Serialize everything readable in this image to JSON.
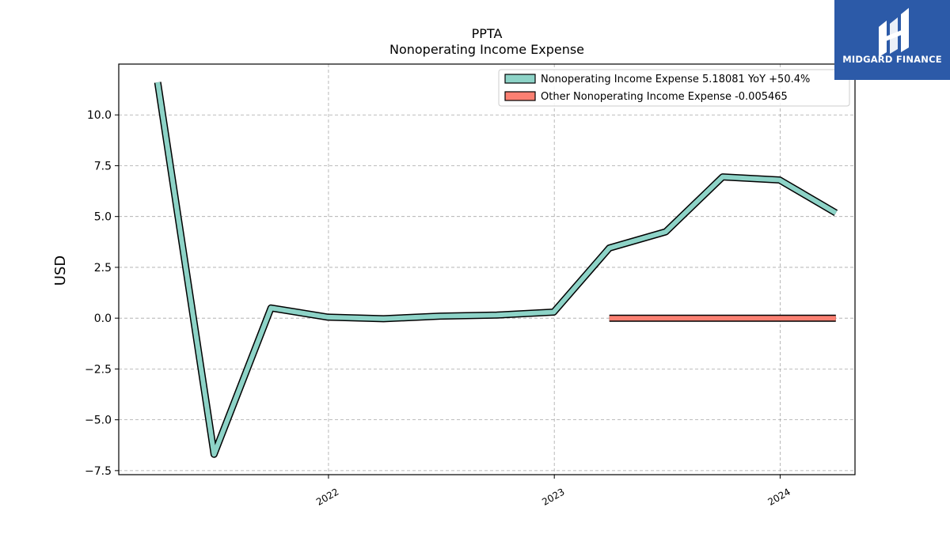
{
  "chart_data": {
    "type": "line",
    "title": "PPTA",
    "subtitle": "Nonoperating Income Expense",
    "xlabel": "",
    "ylabel": "USD",
    "ylim": [
      -7.7,
      12.5
    ],
    "xlim": [
      "2021-01-27",
      "2024-05-01"
    ],
    "y_ticks": [
      10.0,
      7.5,
      5.0,
      2.5,
      0.0,
      -2.5,
      -5.0,
      -7.5
    ],
    "y_tick_labels": [
      "10.0",
      "7.5",
      "5.0",
      "2.5",
      "0.0",
      "−2.5",
      "−5.0",
      "−7.5"
    ],
    "x_ticks": [
      "2022-01-01",
      "2023-01-01",
      "2024-01-01"
    ],
    "x_tick_labels": [
      "2022",
      "2023",
      "2024"
    ],
    "grid": true,
    "legend_position": "top-right",
    "series": [
      {
        "name": "Nonoperating Income Expense",
        "legend_label": "Nonoperating Income Expense  5.18081 YoY +50.4%",
        "color": "#8dd3c7",
        "x": [
          "2021-03-31",
          "2021-06-30",
          "2021-09-30",
          "2021-12-31",
          "2022-03-31",
          "2022-06-30",
          "2022-09-30",
          "2022-12-31",
          "2023-03-31",
          "2023-06-30",
          "2023-09-30",
          "2023-12-31",
          "2024-03-31"
        ],
        "values": [
          11.6,
          -6.7,
          0.5,
          0.05,
          -0.03,
          0.1,
          0.15,
          0.3,
          3.45,
          4.25,
          6.95,
          6.8,
          5.18081
        ]
      },
      {
        "name": "Other Nonoperating Income Expense",
        "legend_label": "Other Nonoperating Income Expense  -0.005465",
        "color": "#fb8072",
        "x": [
          "2023-03-31",
          "2024-03-31"
        ],
        "values": [
          0.0,
          -0.005465
        ]
      }
    ]
  },
  "logo": {
    "text": "MIDGARD FINANCE",
    "background": "#2c5aa8"
  }
}
